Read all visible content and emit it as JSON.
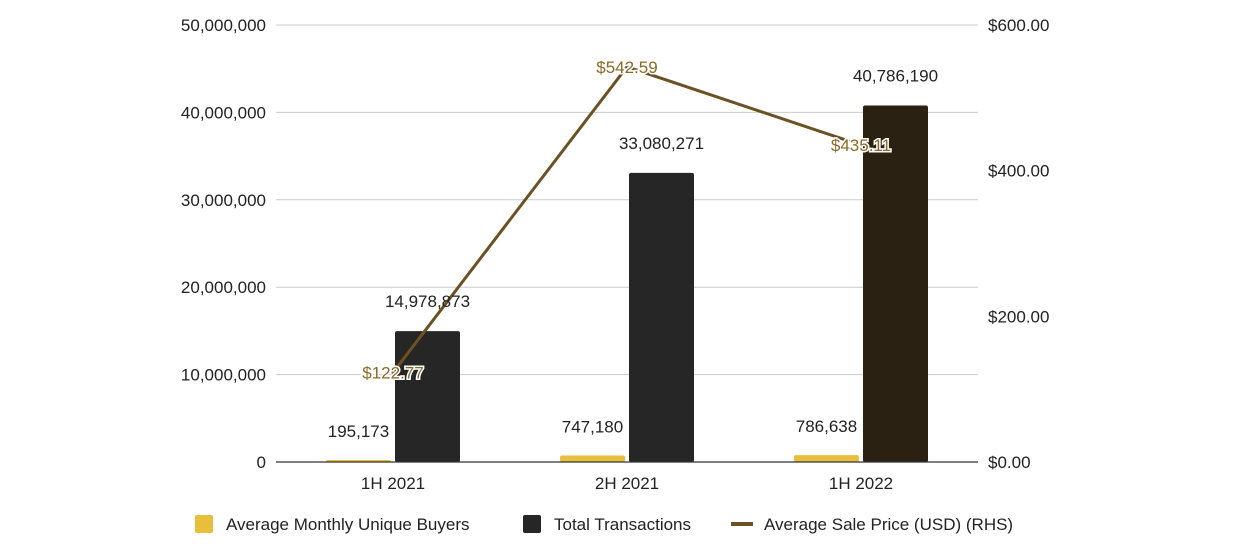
{
  "chart_data": {
    "type": "bar",
    "categories": [
      "1H 2021",
      "2H 2021",
      "1H 2022"
    ],
    "series": [
      {
        "name": "Average Monthly Unique Buyers",
        "kind": "bar",
        "axis": "left",
        "color": "#e8be3c",
        "values": [
          195173,
          747180,
          786638
        ],
        "labels": [
          "195,173",
          "747,180",
          "786,638"
        ]
      },
      {
        "name": "Total Transactions",
        "kind": "bar",
        "axis": "left",
        "color": "#262626",
        "highlight_color": "#2a2113",
        "values": [
          14978873,
          33080271,
          40786190
        ],
        "labels": [
          "14,978,873",
          "33,080,271",
          "40,786,190"
        ]
      },
      {
        "name": "Average Sale Price (USD) (RHS)",
        "kind": "line",
        "axis": "right",
        "color": "#6b5123",
        "label_color": "#8a6a2a",
        "values": [
          122.77,
          542.59,
          435.11
        ],
        "labels": [
          "$122.77",
          "$542.59",
          "$435.11"
        ]
      }
    ],
    "y_left": {
      "ylim": [
        0,
        50000000
      ],
      "ticks": [
        0,
        10000000,
        20000000,
        30000000,
        40000000,
        50000000
      ],
      "tick_labels": [
        "0",
        "10,000,000",
        "20,000,000",
        "30,000,000",
        "40,000,000",
        "50,000,000"
      ]
    },
    "y_right": {
      "ylim": [
        0,
        600
      ],
      "ticks": [
        0,
        200,
        400,
        600
      ],
      "tick_labels": [
        "$0.00",
        "$200.00",
        "$400.00",
        "$600.00"
      ]
    },
    "title": "",
    "xlabel": "",
    "ylabel": "",
    "grid": true,
    "gridline_color": "#cccccc",
    "legend_position": "bottom"
  }
}
